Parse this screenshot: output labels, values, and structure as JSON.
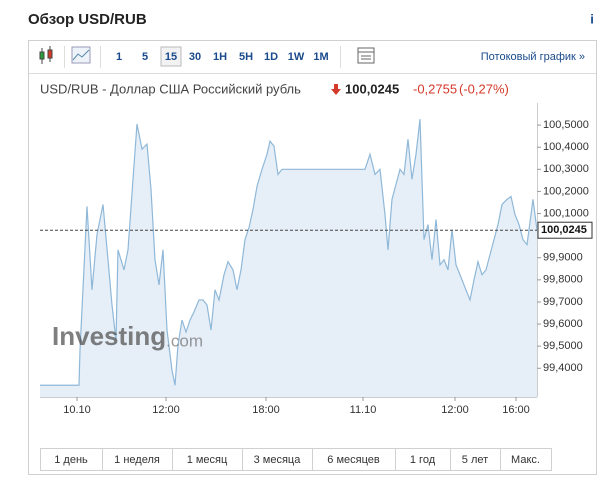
{
  "header": {
    "title": "Обзор USD/RUB",
    "info": "i"
  },
  "toolbar": {
    "intervals": [
      "1",
      "5",
      "15",
      "30",
      "1H",
      "5H",
      "1D",
      "1W",
      "1M"
    ],
    "selected": 2,
    "link": "Потоковый график »"
  },
  "quote": {
    "name": "USD/RUB - Доллар США Российский рубль",
    "price": "100,0245",
    "change": "-0,2755",
    "change_percent": "(-0,27%)"
  },
  "chart_data": {
    "type": "area",
    "watermark": [
      "Investing",
      ".com"
    ],
    "x": [
      0,
      7.8,
      8,
      9.4,
      10.4,
      11.4,
      12.6,
      13.6,
      14.4,
      15.2,
      15.6,
      16.8,
      17.6,
      18.6,
      19.4,
      20.4,
      21.4,
      22.2,
      23,
      23.8,
      24.6,
      25.4,
      26.4,
      27,
      27.6,
      28.4,
      29.2,
      30,
      30.8,
      31.8,
      32.6,
      33.4,
      34.2,
      35,
      35.8,
      36.8,
      37.6,
      38.6,
      39.4,
      40.2,
      41,
      41.8,
      42.6,
      43.4,
      44.4,
      45.4,
      46,
      46.8,
      47.6,
      48.4,
      52,
      60,
      65,
      66,
      67,
      68,
      69,
      69.6,
      70.4,
      71.2,
      72,
      72.8,
      73.6,
      74.4,
      75.2,
      76,
      76.8,
      77.6,
      78.4,
      79.2,
      80,
      80.8,
      81.6,
      82.4,
      83.2,
      84,
      84.8,
      86,
      86.8,
      87.6,
      88.4,
      89.2,
      90,
      90.8,
      91.6,
      92.4,
      93.4,
      94.2,
      95,
      95.8,
      96.6,
      97.4,
      98.2,
      98.6,
      99.4
    ],
    "values": [
      99.323,
      99.323,
      99.482,
      100.132,
      99.755,
      100.005,
      100.141,
      99.891,
      99.686,
      99.527,
      99.936,
      99.845,
      99.936,
      100.255,
      100.505,
      100.391,
      100.414,
      100.209,
      99.891,
      99.777,
      99.936,
      99.573,
      99.391,
      99.323,
      99.505,
      99.618,
      99.564,
      99.618,
      99.655,
      99.709,
      99.709,
      99.686,
      99.573,
      99.755,
      99.709,
      99.823,
      99.882,
      99.845,
      99.755,
      99.845,
      99.982,
      100.036,
      100.118,
      100.223,
      100.3,
      100.368,
      100.427,
      100.405,
      100.277,
      100.3,
      100.3,
      100.3,
      100.3,
      100.368,
      100.277,
      100.3,
      100.095,
      99.936,
      100.164,
      100.232,
      100.3,
      100.277,
      100.436,
      100.255,
      100.368,
      100.527,
      99.982,
      100.05,
      99.891,
      100.073,
      99.868,
      99.891,
      99.845,
      100.027,
      99.868,
      99.823,
      99.777,
      99.709,
      99.8,
      99.882,
      99.823,
      99.845,
      99.914,
      99.982,
      100.05,
      100.141,
      100.164,
      100.177,
      100.095,
      100.05,
      99.982,
      99.959,
      100.095,
      100.164,
      100.0245
    ],
    "color": "#8fb8d8",
    "current": {
      "value": 100.0245,
      "label": "100,0245"
    },
    "xlim": [
      0,
      99.4
    ],
    "xticks": [
      {
        "value": 7.4,
        "label": "10.10"
      },
      {
        "value": 25.2,
        "label": "12:00"
      },
      {
        "value": 45.2,
        "label": "18:00"
      },
      {
        "value": 64.6,
        "label": "11.10"
      },
      {
        "value": 83,
        "label": "12:00"
      },
      {
        "value": 95.2,
        "label": "16:00"
      }
    ],
    "ylim": [
      99.27,
      100.6
    ],
    "yticks": [
      {
        "value": 99.4,
        "label": "99,4000"
      },
      {
        "value": 99.5,
        "label": "99,5000"
      },
      {
        "value": 99.6,
        "label": "99,6000"
      },
      {
        "value": 99.7,
        "label": "99,7000"
      },
      {
        "value": 99.8,
        "label": "99,8000"
      },
      {
        "value": 99.9,
        "label": "99,9000"
      },
      {
        "value": 100.1,
        "label": "100,1000"
      },
      {
        "value": 100.2,
        "label": "100,2000"
      },
      {
        "value": 100.3,
        "label": "100,3000"
      },
      {
        "value": 100.4,
        "label": "100,4000"
      },
      {
        "value": 100.5,
        "label": "100,5000"
      }
    ]
  },
  "periods": [
    "1 день",
    "1 неделя",
    "1 месяц",
    "3 месяца",
    "6 месяцев",
    "1 год",
    "5 лет",
    "Макс."
  ]
}
